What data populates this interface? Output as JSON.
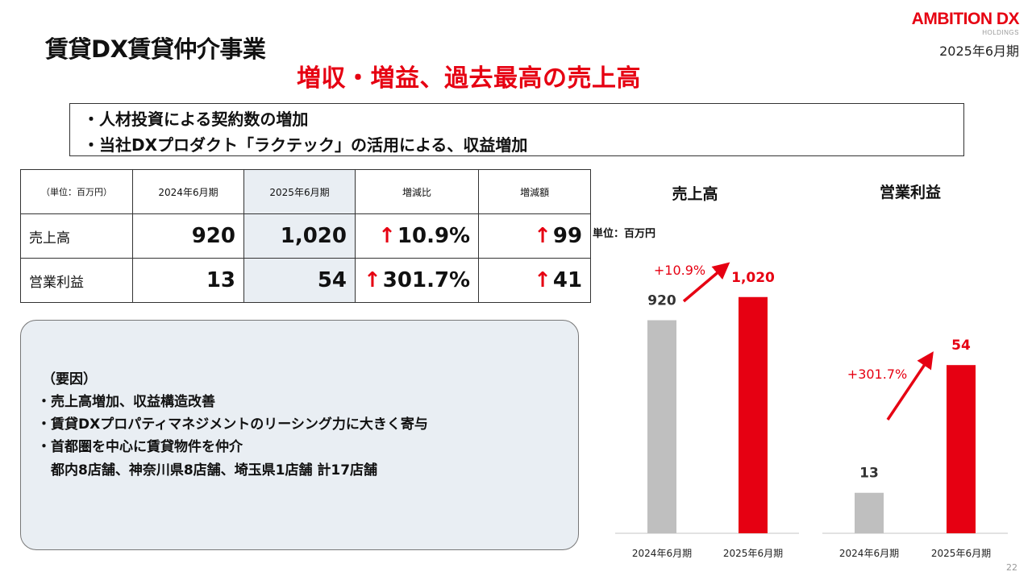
{
  "header": {
    "title": "賃貸DX賃貸仲介事業",
    "headline": "増収・増益、過去最高の売上高",
    "logo_main": "AMBITION DX",
    "logo_sub": "HOLDINGS",
    "period": "2025年6月期"
  },
  "bullets": [
    "・人材投資による契約数の増加",
    "・当社DXプロダクト「ラクテック」の活用による、収益増加"
  ],
  "table": {
    "headers": [
      "（単位：百万円）",
      "2024年6月期",
      "2025年6月期",
      "増減比",
      "増減額"
    ],
    "rows": [
      {
        "label": "売上高",
        "v2024": "920",
        "v2025": "1,020",
        "ratio": "10.9%",
        "amount": "99"
      },
      {
        "label": "営業利益",
        "v2024": "13",
        "v2025": "54",
        "ratio": "301.7%",
        "amount": "41"
      }
    ],
    "arrow": "↑"
  },
  "factors": {
    "title": "（要因）",
    "lines": [
      "・売上高増加、収益構造改善",
      "・賃貸DXプロパティマネジメントのリーシング力に大きく寄与",
      "・首都圏を中心に賃貸物件を仲介",
      "　都内8店舗、神奈川県8店舗、埼玉県1店舗  計17店舗"
    ]
  },
  "unit_label": "単位：百万円",
  "colors": {
    "accent": "#e60012",
    "prior": "#bfbfbf",
    "shade": "#e9eef3"
  },
  "chart_data": [
    {
      "type": "bar",
      "title": "売上高",
      "categories": [
        "2024年6月期",
        "2025年6月期"
      ],
      "values": [
        920,
        1020
      ],
      "value_labels": [
        "920",
        "1,020"
      ],
      "growth_label": "+10.9%",
      "ylim": [
        0,
        1200
      ]
    },
    {
      "type": "bar",
      "title": "営業利益",
      "categories": [
        "2024年6月期",
        "2025年6月期"
      ],
      "values": [
        13,
        54
      ],
      "value_labels": [
        "13",
        "54"
      ],
      "growth_label": "+301.7%",
      "ylim": [
        0,
        75
      ]
    }
  ],
  "page_number": "22"
}
